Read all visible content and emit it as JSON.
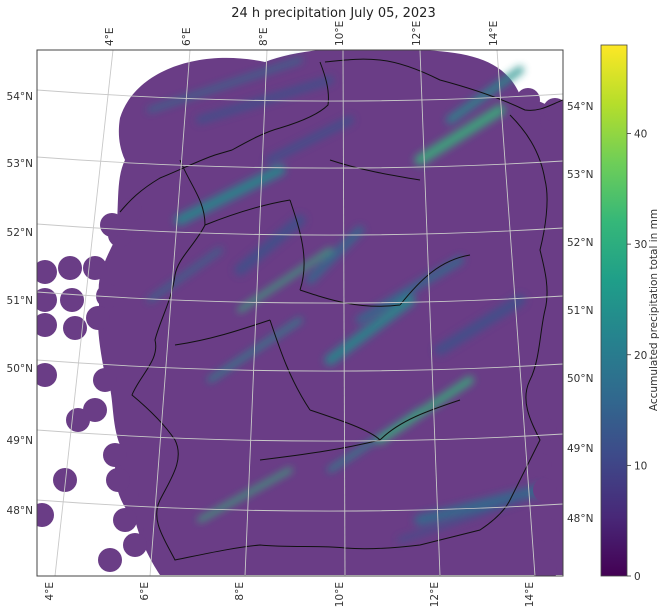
{
  "title": "24 h precipitation July 05, 2023",
  "colorbar": {
    "label": "Accumulated precipitation total in mm",
    "ticks": [
      0,
      10,
      20,
      30,
      40
    ],
    "min": 0,
    "max": 48,
    "colormap": "viridis",
    "colors": [
      "#440154",
      "#482878",
      "#3e4989",
      "#31688e",
      "#26828e",
      "#1f9e89",
      "#35b779",
      "#6ece58",
      "#b5de2b",
      "#fde725"
    ]
  },
  "map": {
    "projection": "conic",
    "background_value_color": "#6a3d86",
    "lon_labels_top": [
      "4°E",
      "6°E",
      "8°E",
      "10°E",
      "12°E",
      "14°E"
    ],
    "lon_labels_bottom": [
      "4°E",
      "6°E",
      "8°E",
      "10°E",
      "12°E",
      "14°E"
    ],
    "lat_labels_left": [
      "54°N",
      "53°N",
      "52°N",
      "51°N",
      "50°N",
      "49°N",
      "48°N"
    ],
    "lat_labels_right": [
      "54°N",
      "53°N",
      "52°N",
      "51°N",
      "50°N",
      "49°N",
      "48°N"
    ],
    "features": [
      "coastline",
      "country-borders",
      "state-borders",
      "graticule"
    ]
  }
}
